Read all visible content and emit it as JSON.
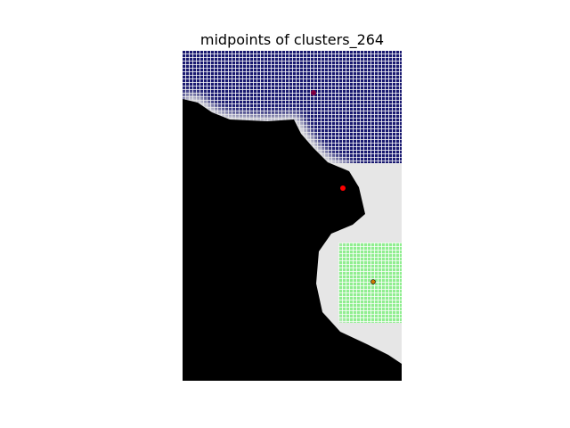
{
  "chart_data": {
    "type": "heatmap",
    "title": "midpoints of clusters_264",
    "xlabel": "",
    "ylabel": "",
    "axes_visible": false,
    "grid": false,
    "colors": {
      "background": "#ffffff",
      "land": "#000000",
      "halo": "#e6e6e6",
      "cluster_blue": "#191970",
      "cluster_blue_grid": "#ffffff",
      "cluster_green": "#90ee90",
      "cluster_green_grid": "#ffffff",
      "midpoint_red": "#ff0000",
      "midpoint_purple": "#800040",
      "midpoint_orange": "#cc7a00"
    },
    "clusters": [
      {
        "name": "cluster-blue",
        "color": "#191970"
      },
      {
        "name": "cluster-green",
        "color": "#90ee90"
      }
    ],
    "midpoints": [
      {
        "name": "midpoint-purple",
        "color": "#800040"
      },
      {
        "name": "midpoint-red",
        "color": "#ff0000"
      },
      {
        "name": "midpoint-orange",
        "color": "#cc7a00"
      }
    ]
  }
}
